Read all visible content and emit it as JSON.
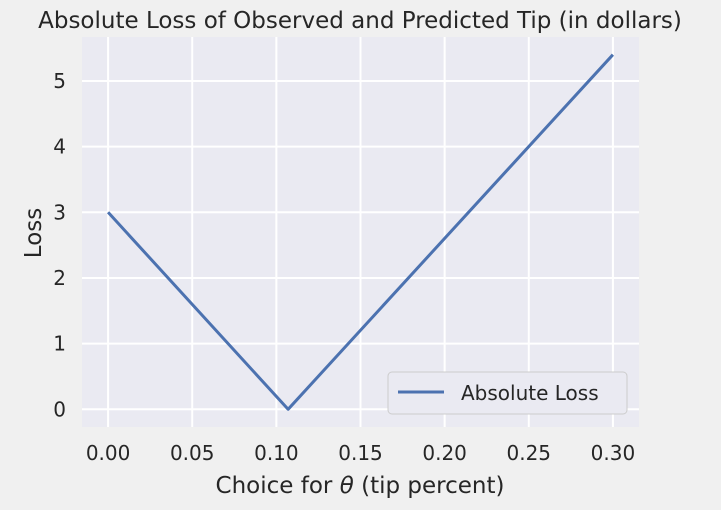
{
  "chart_data": {
    "type": "line",
    "title": "Absolute Loss of Observed and Predicted Tip (in dollars)",
    "xlabel_prefix": "Choice for ",
    "xlabel_symbol": "θ",
    "xlabel_suffix": " (tip percent)",
    "ylabel": "Loss",
    "xlim": [
      -0.0155,
      0.3155
    ],
    "ylim": [
      -0.27,
      5.67
    ],
    "xticks": [
      0.0,
      0.05,
      0.1,
      0.15,
      0.2,
      0.25,
      0.3
    ],
    "xtick_labels": [
      "0.00",
      "0.05",
      "0.10",
      "0.15",
      "0.20",
      "0.25",
      "0.30"
    ],
    "yticks": [
      0,
      1,
      2,
      3,
      4,
      5
    ],
    "ytick_labels": [
      "0",
      "1",
      "2",
      "3",
      "4",
      "5"
    ],
    "grid": true,
    "legend_position": "lower-right",
    "series": [
      {
        "name": "Absolute Loss",
        "color": "#4c72b0",
        "x": [
          0.0,
          0.107,
          0.3
        ],
        "y": [
          3.0,
          0.0,
          5.4
        ]
      }
    ],
    "colors": {
      "plot_background": "#eaeaf2",
      "figure_background": "#f0f0f0",
      "grid": "#ffffff",
      "line": "#4c72b0"
    }
  }
}
